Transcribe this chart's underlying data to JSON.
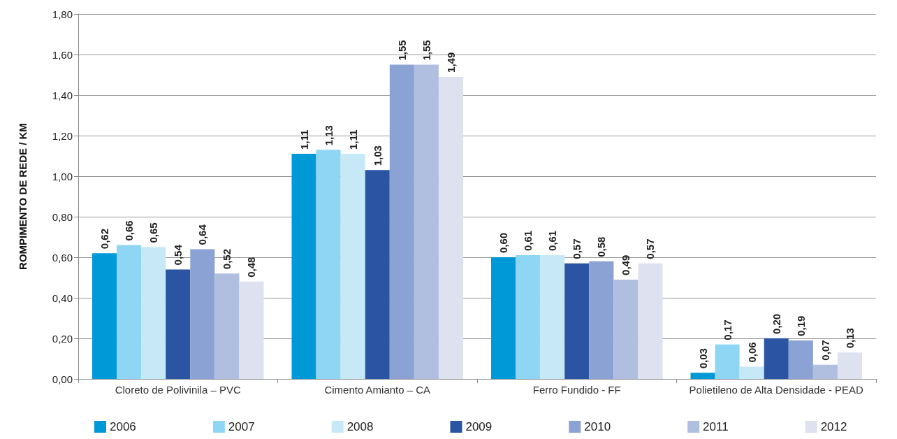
{
  "chart_data": {
    "type": "bar",
    "ylabel": "ROMPIMENTO DE REDE / KM",
    "categories": [
      "Cloreto de Polivinila – PVC",
      "Cimento Amianto – CA",
      "Ferro Fundido - FF",
      "Polietileno de Alta Densidade - PEAD"
    ],
    "series": [
      {
        "name": "2006",
        "color": "#0099d8",
        "values": [
          0.62,
          1.11,
          0.6,
          0.03
        ],
        "value_labels": [
          "0,62",
          "1,11",
          "0,60",
          "0,03"
        ]
      },
      {
        "name": "2007",
        "color": "#8fd6f4",
        "values": [
          0.66,
          1.13,
          0.61,
          0.17
        ],
        "value_labels": [
          "0,66",
          "1,13",
          "0,61",
          "0,17"
        ]
      },
      {
        "name": "2008",
        "color": "#c6e8f7",
        "values": [
          0.65,
          1.11,
          0.61,
          0.06
        ],
        "value_labels": [
          "0,65",
          "1,11",
          "0,61",
          "0,06"
        ]
      },
      {
        "name": "2009",
        "color": "#2b55a3",
        "values": [
          0.54,
          1.03,
          0.57,
          0.2
        ],
        "value_labels": [
          "0,54",
          "1,03",
          "0,57",
          "0,20"
        ]
      },
      {
        "name": "2010",
        "color": "#8aa3d4",
        "values": [
          0.64,
          1.55,
          0.58,
          0.19
        ],
        "value_labels": [
          "0,64",
          "1,55",
          "0,58",
          "0,19"
        ]
      },
      {
        "name": "2011",
        "color": "#b0bfe0",
        "values": [
          0.52,
          1.55,
          0.49,
          0.07
        ],
        "value_labels": [
          "0,52",
          "1,55",
          "0,49",
          "0,07"
        ]
      },
      {
        "name": "2012",
        "color": "#dde1f0",
        "values": [
          0.48,
          1.49,
          0.57,
          0.13
        ],
        "value_labels": [
          "0,48",
          "1,49",
          "0,57",
          "0,13"
        ]
      }
    ],
    "ylim": [
      0,
      1.8
    ],
    "yticks": [
      {
        "value": 0,
        "label": "0,00"
      },
      {
        "value": 0.2,
        "label": "0,20"
      },
      {
        "value": 0.4,
        "label": "0,40"
      },
      {
        "value": 0.6,
        "label": "0,60"
      },
      {
        "value": 0.8,
        "label": "0,80"
      },
      {
        "value": 1.0,
        "label": "1,00"
      },
      {
        "value": 1.2,
        "label": "1,20"
      },
      {
        "value": 1.4,
        "label": "1,40"
      },
      {
        "value": 1.6,
        "label": "1,60"
      },
      {
        "value": 1.8,
        "label": "1,80"
      }
    ],
    "grid": "y",
    "legend": "bottom"
  }
}
